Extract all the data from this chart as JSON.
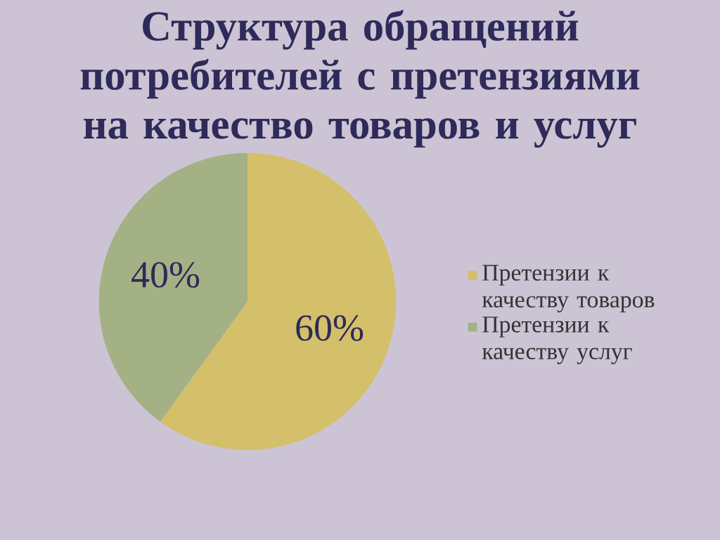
{
  "chart_data": {
    "type": "pie",
    "title": "Структура обращений потребителей с претензиями на качество товаров и услуг",
    "categories": [
      "Претензии к качеству товаров",
      "Претензии к качеству услуг"
    ],
    "values": [
      60,
      40
    ],
    "value_labels": [
      "60%",
      "40%"
    ],
    "colors": [
      "#d4bf6a",
      "#a3b184"
    ],
    "legend": "right"
  }
}
